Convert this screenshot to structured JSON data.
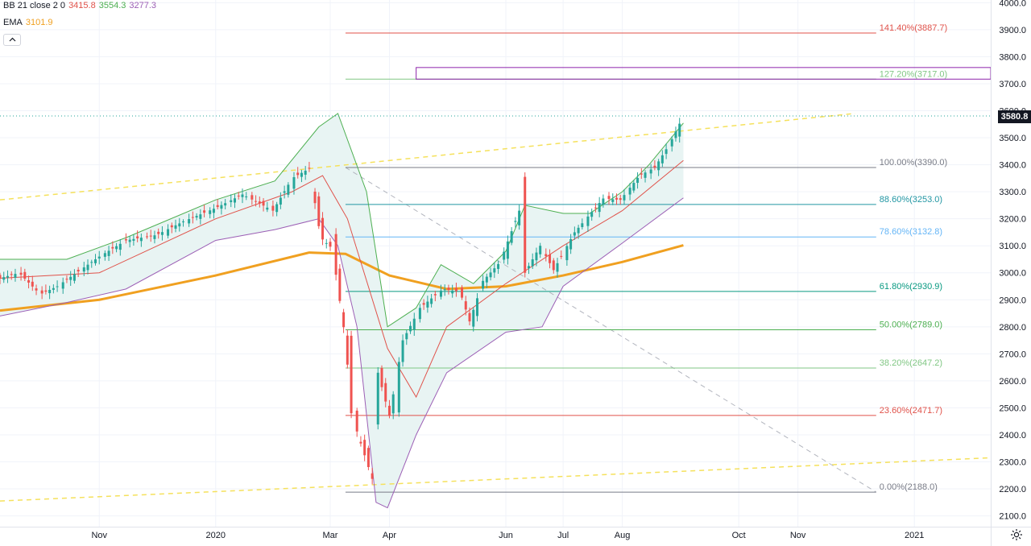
{
  "legend": {
    "bb": {
      "name": "BB 21 close 2 0",
      "basis": "3415.8",
      "upper": "3554.3",
      "lower": "3277.3"
    },
    "ema": {
      "name": "EMA",
      "value": "3101.9"
    }
  },
  "colors": {
    "up": "#26a69a",
    "down": "#ef5350",
    "bb_basis": "#e0524a",
    "bb_upper": "#4caf50",
    "bb_lower": "#9c5fb5",
    "bb_fill": "#e8f4f3",
    "ema": "#f0a020",
    "trend": "#f5e15c",
    "grid": "#f0f3fa",
    "axis_text": "#131722"
  },
  "chart_data": {
    "type": "candlestick",
    "title": "",
    "y_axis_ticks": [
      2100,
      2200,
      2300,
      2400,
      2500,
      2600,
      2700,
      2800,
      2900,
      3000,
      3100,
      3200,
      3300,
      3400,
      3500,
      3600,
      3700,
      3800,
      3900,
      4000
    ],
    "ylim": [
      2060,
      4010
    ],
    "x_ticks": [
      {
        "label": "Nov",
        "date": "2019-11-01"
      },
      {
        "label": "2020",
        "date": "2020-01-01"
      },
      {
        "label": "Mar",
        "date": "2020-03-01"
      },
      {
        "label": "Apr",
        "date": "2020-04-01"
      },
      {
        "label": "Jun",
        "date": "2020-06-01"
      },
      {
        "label": "Jul",
        "date": "2020-07-01"
      },
      {
        "label": "Aug",
        "date": "2020-08-01"
      },
      {
        "label": "Oct",
        "date": "2020-10-01"
      },
      {
        "label": "Nov",
        "date": "2020-11-01"
      },
      {
        "label": "2021",
        "date": "2021-01-01"
      }
    ],
    "xlim": [
      "2019-09-10",
      "2021-02-10"
    ],
    "last_price": "3580.8",
    "last_price_value": 3580.8,
    "close_series": [
      {
        "date": "2019-09-10",
        "close": 2980
      },
      {
        "date": "2019-09-20",
        "close": 3000
      },
      {
        "date": "2019-10-01",
        "close": 2920
      },
      {
        "date": "2019-10-10",
        "close": 2950
      },
      {
        "date": "2019-10-20",
        "close": 3000
      },
      {
        "date": "2019-11-01",
        "close": 3060
      },
      {
        "date": "2019-11-15",
        "close": 3120
      },
      {
        "date": "2019-12-01",
        "close": 3140
      },
      {
        "date": "2019-12-15",
        "close": 3190
      },
      {
        "date": "2020-01-01",
        "close": 3240
      },
      {
        "date": "2020-01-15",
        "close": 3290
      },
      {
        "date": "2020-01-31",
        "close": 3230
      },
      {
        "date": "2020-02-10",
        "close": 3350
      },
      {
        "date": "2020-02-19",
        "close": 3386
      },
      {
        "date": "2020-02-25",
        "close": 3130
      },
      {
        "date": "2020-03-02",
        "close": 3090
      },
      {
        "date": "2020-03-09",
        "close": 2750
      },
      {
        "date": "2020-03-12",
        "close": 2480
      },
      {
        "date": "2020-03-16",
        "close": 2390
      },
      {
        "date": "2020-03-23",
        "close": 2237
      },
      {
        "date": "2020-03-26",
        "close": 2630
      },
      {
        "date": "2020-04-01",
        "close": 2470
      },
      {
        "date": "2020-04-08",
        "close": 2750
      },
      {
        "date": "2020-04-17",
        "close": 2870
      },
      {
        "date": "2020-04-29",
        "close": 2940
      },
      {
        "date": "2020-05-08",
        "close": 2930
      },
      {
        "date": "2020-05-13",
        "close": 2820
      },
      {
        "date": "2020-05-20",
        "close": 2970
      },
      {
        "date": "2020-05-29",
        "close": 3040
      },
      {
        "date": "2020-06-08",
        "close": 3230
      },
      {
        "date": "2020-06-11",
        "close": 3000
      },
      {
        "date": "2020-06-19",
        "close": 3100
      },
      {
        "date": "2020-06-26",
        "close": 3010
      },
      {
        "date": "2020-07-07",
        "close": 3150
      },
      {
        "date": "2020-07-22",
        "close": 3275
      },
      {
        "date": "2020-07-31",
        "close": 3270
      },
      {
        "date": "2020-08-10",
        "close": 3360
      },
      {
        "date": "2020-08-18",
        "close": 3390
      },
      {
        "date": "2020-08-26",
        "close": 3480
      },
      {
        "date": "2020-09-02",
        "close": 3580.8
      }
    ],
    "ema_series": [
      {
        "date": "2019-09-10",
        "ema": 2860
      },
      {
        "date": "2019-11-01",
        "ema": 2900
      },
      {
        "date": "2020-01-01",
        "ema": 2990
      },
      {
        "date": "2020-02-19",
        "ema": 3075
      },
      {
        "date": "2020-03-09",
        "ema": 3070
      },
      {
        "date": "2020-04-01",
        "ema": 2990
      },
      {
        "date": "2020-05-01",
        "ema": 2940
      },
      {
        "date": "2020-06-01",
        "ema": 2950
      },
      {
        "date": "2020-07-01",
        "ema": 2990
      },
      {
        "date": "2020-08-01",
        "ema": 3040
      },
      {
        "date": "2020-09-02",
        "ema": 3101.9
      }
    ],
    "bb_upper_series": [
      {
        "date": "2019-09-10",
        "v": 3050
      },
      {
        "date": "2019-10-15",
        "v": 3050
      },
      {
        "date": "2019-11-15",
        "v": 3130
      },
      {
        "date": "2020-01-01",
        "v": 3270
      },
      {
        "date": "2020-02-01",
        "v": 3340
      },
      {
        "date": "2020-02-24",
        "v": 3540
      },
      {
        "date": "2020-03-05",
        "v": 3590
      },
      {
        "date": "2020-03-20",
        "v": 3300
      },
      {
        "date": "2020-03-31",
        "v": 2800
      },
      {
        "date": "2020-04-15",
        "v": 2870
      },
      {
        "date": "2020-04-28",
        "v": 3030
      },
      {
        "date": "2020-05-15",
        "v": 2960
      },
      {
        "date": "2020-06-01",
        "v": 3080
      },
      {
        "date": "2020-06-11",
        "v": 3250
      },
      {
        "date": "2020-07-01",
        "v": 3220
      },
      {
        "date": "2020-07-15",
        "v": 3220
      },
      {
        "date": "2020-08-01",
        "v": 3300
      },
      {
        "date": "2020-08-15",
        "v": 3400
      },
      {
        "date": "2020-09-02",
        "v": 3554.3
      }
    ],
    "bb_basis_series": [
      {
        "date": "2019-09-10",
        "v": 2980
      },
      {
        "date": "2019-11-01",
        "v": 3000
      },
      {
        "date": "2020-01-01",
        "v": 3200
      },
      {
        "date": "2020-02-10",
        "v": 3300
      },
      {
        "date": "2020-02-26",
        "v": 3360
      },
      {
        "date": "2020-03-10",
        "v": 3200
      },
      {
        "date": "2020-03-31",
        "v": 2720
      },
      {
        "date": "2020-04-15",
        "v": 2540
      },
      {
        "date": "2020-05-01",
        "v": 2800
      },
      {
        "date": "2020-06-01",
        "v": 2960
      },
      {
        "date": "2020-07-01",
        "v": 3100
      },
      {
        "date": "2020-08-01",
        "v": 3230
      },
      {
        "date": "2020-09-02",
        "v": 3415.8
      }
    ],
    "bb_lower_series": [
      {
        "date": "2019-09-10",
        "v": 2840
      },
      {
        "date": "2019-10-15",
        "v": 2890
      },
      {
        "date": "2019-11-15",
        "v": 2940
      },
      {
        "date": "2020-01-01",
        "v": 3120
      },
      {
        "date": "2020-02-01",
        "v": 3160
      },
      {
        "date": "2020-02-24",
        "v": 3200
      },
      {
        "date": "2020-03-05",
        "v": 3100
      },
      {
        "date": "2020-03-15",
        "v": 2800
      },
      {
        "date": "2020-03-25",
        "v": 2150
      },
      {
        "date": "2020-03-31",
        "v": 2130
      },
      {
        "date": "2020-04-15",
        "v": 2400
      },
      {
        "date": "2020-05-01",
        "v": 2630
      },
      {
        "date": "2020-06-01",
        "v": 2780
      },
      {
        "date": "2020-06-20",
        "v": 2800
      },
      {
        "date": "2020-07-01",
        "v": 2950
      },
      {
        "date": "2020-08-01",
        "v": 3110
      },
      {
        "date": "2020-09-02",
        "v": 3277.3
      }
    ],
    "fib_levels": [
      {
        "label": "0.00%(2188.0)",
        "value": 2188.0,
        "color": "#787b86"
      },
      {
        "label": "23.60%(2471.7)",
        "value": 2471.7,
        "color": "#e0524a"
      },
      {
        "label": "38.20%(2647.2)",
        "value": 2647.2,
        "color": "#81c784"
      },
      {
        "label": "50.00%(2789.0)",
        "value": 2789.0,
        "color": "#4caf50"
      },
      {
        "label": "61.80%(2930.9)",
        "value": 2930.9,
        "color": "#089981"
      },
      {
        "label": "78.60%(3132.8)",
        "value": 3132.8,
        "color": "#64b5f6"
      },
      {
        "label": "88.60%(3253.0)",
        "value": 3253.0,
        "color": "#2196a3"
      },
      {
        "label": "100.00%(3390.0)",
        "value": 3390.0,
        "color": "#787b86"
      },
      {
        "label": "127.20%(3717.0)",
        "value": 3717.0,
        "color": "#81c784"
      },
      {
        "label": "141.40%(3887.7)",
        "value": 3887.7,
        "color": "#e0524a"
      }
    ],
    "fib_start": "2020-03-09",
    "fib_end": "2020-12-12",
    "rectangle": {
      "x0": "2020-04-15",
      "x1": "2021-02-10",
      "y0": 3717,
      "y1": 3760
    },
    "trendlines": [
      {
        "p1": {
          "date": "2019-09-10",
          "value": 3270
        },
        "p2": {
          "date": "2020-12-01",
          "value": 3590
        },
        "style": "dashed-yellow"
      },
      {
        "p1": {
          "date": "2019-09-10",
          "value": 2155
        },
        "p2": {
          "date": "2021-02-10",
          "value": 2315
        },
        "style": "dashed-yellow"
      },
      {
        "p1": {
          "date": "2020-03-09",
          "value": 3390
        },
        "p2": {
          "date": "2020-12-12",
          "value": 2188
        },
        "style": "dashed-gray"
      }
    ]
  }
}
